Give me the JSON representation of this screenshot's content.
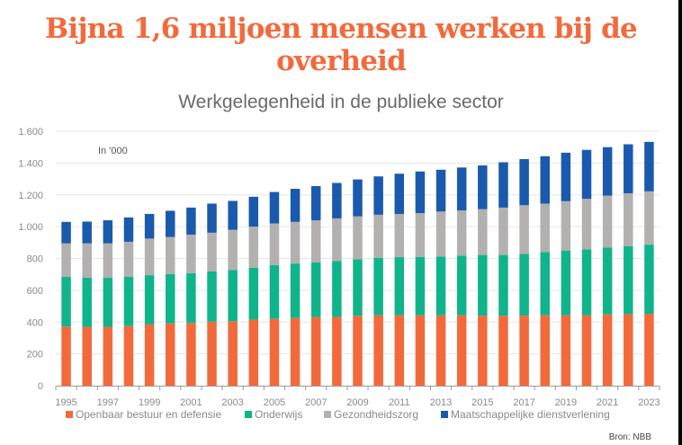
{
  "chart_data": {
    "type": "bar",
    "stacked": true,
    "title": "Bijna 1,6 miljoen mensen werken bij de overheid",
    "subtitle": "Werkgelegenheid in de publieke sector",
    "unit_label": "In '000",
    "source": "Bron: NBB",
    "xlabel": "",
    "ylabel": "",
    "ylim": [
      0,
      1600
    ],
    "yticks": [
      0,
      200,
      400,
      600,
      800,
      1000,
      1200,
      1400,
      1600
    ],
    "ytick_labels": [
      "0",
      "200",
      "400",
      "600",
      "800",
      "1.000",
      "1.200",
      "1.400",
      "1.600"
    ],
    "grid": true,
    "legend_position": "bottom",
    "categories": [
      "1995",
      "1996",
      "1997",
      "1998",
      "1999",
      "2000",
      "2001",
      "2002",
      "2003",
      "2004",
      "2005",
      "2006",
      "2007",
      "2008",
      "2009",
      "2010",
      "2011",
      "2012",
      "2013",
      "2014",
      "2015",
      "2016",
      "2017",
      "2018",
      "2019",
      "2020",
      "2021",
      "2022",
      "2023"
    ],
    "xtick_labels": [
      "1995",
      "1997",
      "1999",
      "2001",
      "2003",
      "2005",
      "2007",
      "2009",
      "2011",
      "2013",
      "2015",
      "2017",
      "2019",
      "2021",
      "2023"
    ],
    "series": [
      {
        "name": "Openbaar bestuur en defensie",
        "color": "#f26a3c",
        "values": [
          372,
          370,
          370,
          375,
          385,
          392,
          394,
          402,
          405,
          415,
          420,
          425,
          432,
          432,
          440,
          443,
          443,
          443,
          443,
          443,
          440,
          440,
          440,
          443,
          443,
          443,
          448,
          450,
          452
        ]
      },
      {
        "name": "Onderwijs",
        "color": "#10b48a",
        "values": [
          312,
          310,
          308,
          309,
          310,
          310,
          314,
          316,
          323,
          327,
          338,
          343,
          344,
          351,
          355,
          360,
          365,
          367,
          369,
          375,
          382,
          382,
          388,
          397,
          407,
          415,
          420,
          428,
          435
        ]
      },
      {
        "name": "Gezondheidszorg",
        "color": "#b3b0b0",
        "values": [
          211,
          215,
          217,
          221,
          230,
          233,
          242,
          244,
          252,
          258,
          262,
          262,
          264,
          269,
          270,
          272,
          272,
          275,
          283,
          284,
          288,
          298,
          307,
          305,
          310,
          317,
          327,
          332,
          335
        ]
      },
      {
        "name": "Maatschappelijke dienstverlening",
        "color": "#1a5aac",
        "values": [
          135,
          137,
          145,
          153,
          155,
          165,
          170,
          183,
          182,
          188,
          198,
          208,
          215,
          223,
          232,
          241,
          253,
          262,
          263,
          270,
          275,
          285,
          290,
          298,
          305,
          308,
          305,
          308,
          311
        ]
      }
    ]
  }
}
